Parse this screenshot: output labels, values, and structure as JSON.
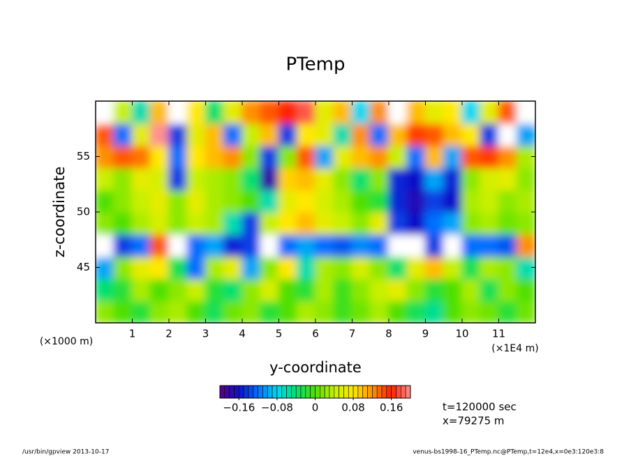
{
  "chart_data": {
    "type": "heatmap",
    "title": "PTemp",
    "x_label": "y-coordinate",
    "y_label": "z-coordinate",
    "x_unit_left": "(×1000 m)",
    "x_unit_right": "(×1E4 m)",
    "xlim": [
      0,
      12
    ],
    "xticks": [
      1,
      2,
      3,
      4,
      5,
      6,
      7,
      8,
      9,
      10,
      11
    ],
    "ylim": [
      40,
      60
    ],
    "yticks": [
      45,
      50,
      55
    ],
    "x": [
      0.25,
      0.75,
      1.25,
      1.75,
      2.25,
      2.75,
      3.25,
      3.75,
      4.25,
      4.75,
      5.25,
      5.75,
      6.25,
      6.75,
      7.25,
      7.75,
      8.25,
      8.75,
      9.25,
      9.75,
      10.25,
      10.75,
      11.25,
      11.75
    ],
    "y": [
      41,
      43,
      45,
      47,
      49,
      51,
      53,
      55,
      57,
      59
    ],
    "values": [
      [
        0.02,
        0,
        -0.02,
        0.02,
        0.03,
        0,
        -0.03,
        0.01,
        0.02,
        -0.02,
        0,
        0.03,
        0.02,
        -0.01,
        0.01,
        0.03,
        0,
        -0.03,
        -0.05,
        0,
        0.02,
        0.01,
        -0.02,
        0.01
      ],
      [
        -0.04,
        -0.02,
        0.03,
        0,
        0.02,
        0.04,
        -0.02,
        -0.04,
        0.02,
        0.05,
        0,
        -0.02,
        0.03,
        -0.01,
        0.02,
        0.04,
        0.06,
        0.02,
        -0.02,
        0,
        0.03,
        -0.03,
        0.02,
        0
      ],
      [
        -0.1,
        0.02,
        0.06,
        0.08,
        -0.03,
        -0.12,
        0.03,
        0.06,
        -0.1,
        0.02,
        0.08,
        -0.06,
        0.03,
        0.02,
        0.05,
        0.02,
        -0.04,
        0.06,
        0.1,
        0.04,
        -0.03,
        0.03,
        0.02,
        -0.06
      ],
      [
        0.25,
        -0.14,
        -0.12,
        0.14,
        0.22,
        -0.12,
        -0.1,
        -0.15,
        -0.14,
        0.22,
        -0.12,
        -0.1,
        -0.12,
        -0.13,
        -0.11,
        -0.12,
        0.24,
        0.25,
        -0.14,
        0.23,
        -0.12,
        -0.12,
        -0.13,
        0.12
      ],
      [
        0.02,
        0,
        0.03,
        0.05,
        0.02,
        0.04,
        0.03,
        -0.06,
        -0.14,
        0.04,
        0.08,
        0.1,
        0.06,
        0.04,
        0.02,
        0.06,
        -0.14,
        -0.16,
        -0.12,
        -0.1,
        0.02,
        0.03,
        0.01,
        0.02
      ],
      [
        0,
        0.02,
        0.04,
        0.06,
        0.02,
        0.06,
        0.03,
        0.02,
        0,
        -0.06,
        0.06,
        0.08,
        0.05,
        0.03,
        0,
        -0.02,
        -0.15,
        -0.17,
        -0.14,
        -0.16,
        0.03,
        0.04,
        0.02,
        0.03
      ],
      [
        0.04,
        0.02,
        0.06,
        0.05,
        -0.14,
        0.04,
        0.03,
        0.02,
        -0.04,
        -0.18,
        0.09,
        0.1,
        0.06,
        0.02,
        -0.04,
        0.02,
        -0.15,
        -0.16,
        -0.1,
        -0.15,
        0.02,
        0.05,
        0.06,
        0.02
      ],
      [
        0.12,
        0.14,
        0.13,
        0.08,
        -0.12,
        0.08,
        0.1,
        0.12,
        0.02,
        -0.14,
        0.02,
        0.14,
        -0.1,
        0.06,
        0.1,
        0.12,
        0.04,
        -0.12,
        0.1,
        -0.1,
        0.14,
        0.15,
        0.12,
        0.03
      ],
      [
        0.14,
        -0.12,
        0.06,
        0.2,
        -0.14,
        0.06,
        0.1,
        -0.12,
        0.04,
        0.1,
        -0.14,
        0.08,
        0.06,
        -0.06,
        0.12,
        -0.12,
        0.1,
        0.15,
        0.14,
        0.1,
        0.08,
        -0.14,
        0.24,
        -0.1
      ],
      [
        -0.25,
        0.04,
        -0.06,
        0.1,
        0.25,
        0.08,
        -0.04,
        0.06,
        0.12,
        0.14,
        0.16,
        0.18,
        0.06,
        0.1,
        -0.08,
        0.12,
        -0.25,
        0.1,
        0.06,
        0.08,
        -0.08,
        0.06,
        0.14,
        -0.25
      ]
    ],
    "colormap": [
      "#5a0088",
      "#1010c8",
      "#0070ff",
      "#00d8f0",
      "#00e070",
      "#50e000",
      "#c8f000",
      "#ffe800",
      "#ff9000",
      "#ff2000",
      "#ff9090"
    ],
    "out_of_range_color": "#ffffff",
    "colorbar": {
      "lim": [
        -0.2,
        0.2
      ],
      "step": 0.01,
      "ticks": [
        {
          "value": -0.16,
          "label": "−0.16"
        },
        {
          "value": -0.08,
          "label": "−0.08"
        },
        0,
        0.08,
        0.16
      ]
    },
    "annotations": [
      "t=120000 sec",
      "x=79275 m"
    ],
    "footer_left": "/usr/bin/gpview  2013-10-17",
    "footer_right": "venus-bs1998-16_PTemp.nc@PTemp,t=12e4,x=0e3:120e3:8"
  }
}
